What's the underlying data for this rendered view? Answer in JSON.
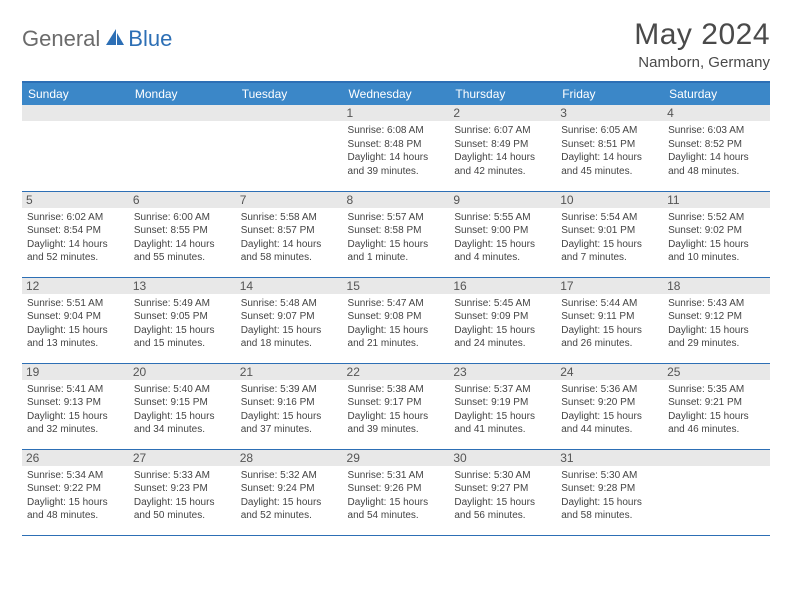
{
  "logo": {
    "part1": "General",
    "part2": "Blue"
  },
  "title": "May 2024",
  "location": "Namborn, Germany",
  "colors": {
    "header_bg": "#3b87c8",
    "border": "#2d6fb5",
    "daynum_bg": "#e8e8e8",
    "text": "#444444",
    "title_text": "#4a4a4a",
    "logo_gray": "#6b6b6b",
    "logo_blue": "#2d6fb5"
  },
  "weekdays": [
    "Sunday",
    "Monday",
    "Tuesday",
    "Wednesday",
    "Thursday",
    "Friday",
    "Saturday"
  ],
  "weeks": [
    [
      null,
      null,
      null,
      {
        "n": "1",
        "sr": "6:08 AM",
        "ss": "8:48 PM",
        "dl": "14 hours and 39 minutes."
      },
      {
        "n": "2",
        "sr": "6:07 AM",
        "ss": "8:49 PM",
        "dl": "14 hours and 42 minutes."
      },
      {
        "n": "3",
        "sr": "6:05 AM",
        "ss": "8:51 PM",
        "dl": "14 hours and 45 minutes."
      },
      {
        "n": "4",
        "sr": "6:03 AM",
        "ss": "8:52 PM",
        "dl": "14 hours and 48 minutes."
      }
    ],
    [
      {
        "n": "5",
        "sr": "6:02 AM",
        "ss": "8:54 PM",
        "dl": "14 hours and 52 minutes."
      },
      {
        "n": "6",
        "sr": "6:00 AM",
        "ss": "8:55 PM",
        "dl": "14 hours and 55 minutes."
      },
      {
        "n": "7",
        "sr": "5:58 AM",
        "ss": "8:57 PM",
        "dl": "14 hours and 58 minutes."
      },
      {
        "n": "8",
        "sr": "5:57 AM",
        "ss": "8:58 PM",
        "dl": "15 hours and 1 minute."
      },
      {
        "n": "9",
        "sr": "5:55 AM",
        "ss": "9:00 PM",
        "dl": "15 hours and 4 minutes."
      },
      {
        "n": "10",
        "sr": "5:54 AM",
        "ss": "9:01 PM",
        "dl": "15 hours and 7 minutes."
      },
      {
        "n": "11",
        "sr": "5:52 AM",
        "ss": "9:02 PM",
        "dl": "15 hours and 10 minutes."
      }
    ],
    [
      {
        "n": "12",
        "sr": "5:51 AM",
        "ss": "9:04 PM",
        "dl": "15 hours and 13 minutes."
      },
      {
        "n": "13",
        "sr": "5:49 AM",
        "ss": "9:05 PM",
        "dl": "15 hours and 15 minutes."
      },
      {
        "n": "14",
        "sr": "5:48 AM",
        "ss": "9:07 PM",
        "dl": "15 hours and 18 minutes."
      },
      {
        "n": "15",
        "sr": "5:47 AM",
        "ss": "9:08 PM",
        "dl": "15 hours and 21 minutes."
      },
      {
        "n": "16",
        "sr": "5:45 AM",
        "ss": "9:09 PM",
        "dl": "15 hours and 24 minutes."
      },
      {
        "n": "17",
        "sr": "5:44 AM",
        "ss": "9:11 PM",
        "dl": "15 hours and 26 minutes."
      },
      {
        "n": "18",
        "sr": "5:43 AM",
        "ss": "9:12 PM",
        "dl": "15 hours and 29 minutes."
      }
    ],
    [
      {
        "n": "19",
        "sr": "5:41 AM",
        "ss": "9:13 PM",
        "dl": "15 hours and 32 minutes."
      },
      {
        "n": "20",
        "sr": "5:40 AM",
        "ss": "9:15 PM",
        "dl": "15 hours and 34 minutes."
      },
      {
        "n": "21",
        "sr": "5:39 AM",
        "ss": "9:16 PM",
        "dl": "15 hours and 37 minutes."
      },
      {
        "n": "22",
        "sr": "5:38 AM",
        "ss": "9:17 PM",
        "dl": "15 hours and 39 minutes."
      },
      {
        "n": "23",
        "sr": "5:37 AM",
        "ss": "9:19 PM",
        "dl": "15 hours and 41 minutes."
      },
      {
        "n": "24",
        "sr": "5:36 AM",
        "ss": "9:20 PM",
        "dl": "15 hours and 44 minutes."
      },
      {
        "n": "25",
        "sr": "5:35 AM",
        "ss": "9:21 PM",
        "dl": "15 hours and 46 minutes."
      }
    ],
    [
      {
        "n": "26",
        "sr": "5:34 AM",
        "ss": "9:22 PM",
        "dl": "15 hours and 48 minutes."
      },
      {
        "n": "27",
        "sr": "5:33 AM",
        "ss": "9:23 PM",
        "dl": "15 hours and 50 minutes."
      },
      {
        "n": "28",
        "sr": "5:32 AM",
        "ss": "9:24 PM",
        "dl": "15 hours and 52 minutes."
      },
      {
        "n": "29",
        "sr": "5:31 AM",
        "ss": "9:26 PM",
        "dl": "15 hours and 54 minutes."
      },
      {
        "n": "30",
        "sr": "5:30 AM",
        "ss": "9:27 PM",
        "dl": "15 hours and 56 minutes."
      },
      {
        "n": "31",
        "sr": "5:30 AM",
        "ss": "9:28 PM",
        "dl": "15 hours and 58 minutes."
      },
      null
    ]
  ],
  "labels": {
    "sunrise": "Sunrise:",
    "sunset": "Sunset:",
    "daylight": "Daylight:"
  }
}
